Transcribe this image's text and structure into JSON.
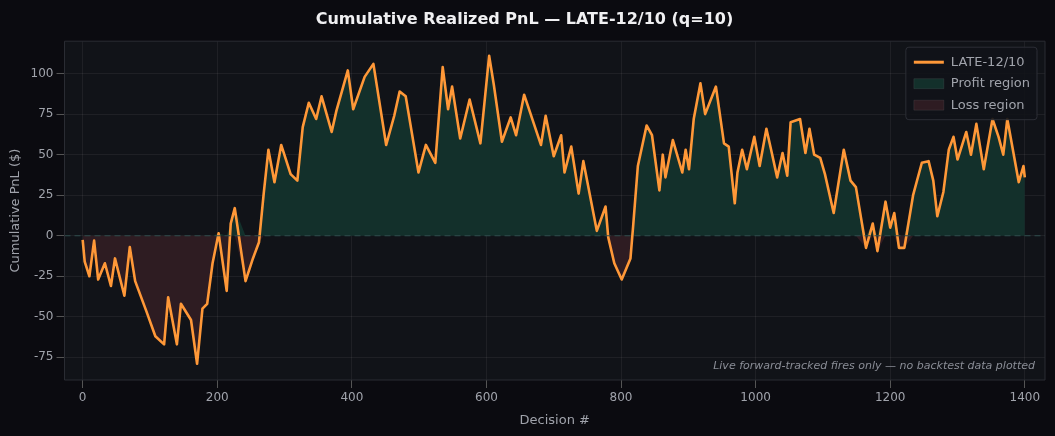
{
  "chart_data": {
    "type": "line",
    "title": "Cumulative Realized PnL — LATE-12/10 (q=10)",
    "xlabel": "Decision #",
    "ylabel": "Cumulative PnL ($)",
    "x": [
      0,
      3,
      10,
      17,
      23,
      33,
      42,
      48,
      62,
      70,
      78,
      95,
      108,
      121,
      127,
      140,
      146,
      161,
      170,
      178,
      185,
      193,
      202,
      214,
      220,
      226,
      242,
      253,
      262,
      269,
      276,
      285,
      295,
      309,
      319,
      327,
      336,
      347,
      355,
      370,
      377,
      394,
      402,
      419,
      432,
      451,
      463,
      471,
      480,
      499,
      510,
      524,
      535,
      543,
      549,
      561,
      575,
      591,
      604,
      611,
      623,
      636,
      644,
      656,
      681,
      688,
      700,
      711,
      716,
      726,
      737,
      744,
      764,
      777,
      781,
      790,
      801,
      814,
      818,
      825,
      838,
      846,
      857,
      862,
      866,
      877,
      891,
      896,
      901,
      908,
      918,
      925,
      941,
      953,
      960,
      969,
      973,
      980,
      987,
      998,
      1006,
      1016,
      1023,
      1032,
      1040,
      1047,
      1052,
      1066,
      1074,
      1080,
      1087,
      1096,
      1103,
      1116,
      1131,
      1141,
      1149,
      1164,
      1174,
      1181,
      1193,
      1200,
      1206,
      1213,
      1221,
      1234,
      1247,
      1257,
      1264,
      1270,
      1279,
      1287,
      1294,
      1300,
      1313,
      1320,
      1328,
      1339,
      1352,
      1361,
      1368,
      1374,
      1391,
      1398,
      1400
    ],
    "series": [
      {
        "name": "Profit region",
        "type": "area",
        "color": "#13302b",
        "values": [
          0,
          0,
          0,
          0,
          0,
          0,
          0,
          0,
          0,
          0,
          0,
          0,
          0,
          0,
          0,
          0,
          0,
          0,
          0,
          0,
          0,
          0,
          1.5,
          0,
          7.5,
          17,
          0,
          0,
          0,
          26,
          53,
          33,
          56,
          38,
          34,
          67,
          82,
          72,
          86,
          64,
          77,
          102,
          78,
          98,
          106,
          56,
          74,
          89,
          86,
          39,
          56,
          45,
          104,
          78,
          92,
          60,
          84,
          57,
          111,
          93,
          58,
          73,
          62,
          87,
          56,
          74,
          49,
          62,
          39,
          55,
          26,
          46,
          3,
          18,
          0,
          0,
          0,
          0,
          6,
          43,
          68,
          62,
          28,
          50,
          36,
          59,
          39,
          53,
          41,
          72,
          94,
          75,
          92,
          57,
          55,
          20,
          39,
          53,
          41,
          61,
          43,
          66,
          53,
          36,
          51,
          37,
          70,
          72,
          51,
          66,
          50,
          48,
          38,
          14,
          53,
          34,
          30,
          0,
          7.5,
          0,
          21,
          5,
          14,
          0,
          0,
          25,
          45,
          46,
          34,
          12,
          27,
          53,
          61,
          47,
          64,
          50,
          69,
          41,
          72,
          61,
          50,
          72,
          33,
          43,
          36
        ]
      },
      {
        "name": "Loss region",
        "type": "area",
        "color": "#2e1c22",
        "values": [
          -2.5,
          -16,
          -25,
          -3,
          -27,
          -17,
          -31,
          -14,
          -37,
          -7,
          -28,
          -47,
          -62,
          -67,
          -38,
          -67,
          -42,
          -52,
          -79,
          -45,
          -42,
          -17,
          0,
          -34,
          0,
          0,
          -28,
          -14,
          -4,
          0,
          0,
          0,
          0,
          0,
          0,
          0,
          0,
          0,
          0,
          0,
          0,
          0,
          0,
          0,
          0,
          0,
          0,
          0,
          0,
          0,
          0,
          0,
          0,
          0,
          0,
          0,
          0,
          0,
          0,
          0,
          0,
          0,
          0,
          0,
          0,
          0,
          0,
          0,
          0,
          0,
          0,
          0,
          0,
          0,
          -1,
          -17,
          -27,
          -14,
          0,
          0,
          0,
          0,
          0,
          0,
          0,
          0,
          0,
          0,
          0,
          0,
          0,
          0,
          0,
          0,
          0,
          0,
          0,
          0,
          0,
          0,
          0,
          0,
          0,
          0,
          0,
          0,
          0,
          0,
          0,
          0,
          0,
          0,
          0,
          0,
          0,
          0,
          0,
          -7.5,
          0,
          -9.5,
          0,
          0,
          0,
          -7.5,
          -7.5,
          0,
          0,
          0,
          0,
          0,
          0,
          0,
          0,
          0,
          0,
          0,
          0,
          0,
          0,
          0,
          0,
          0,
          0,
          0,
          0
        ]
      },
      {
        "name": "LATE-12/10",
        "color": "#ff9838",
        "values": [
          -2.5,
          -16,
          -25,
          -3,
          -27,
          -17,
          -31,
          -14,
          -37,
          -7,
          -28,
          -47,
          -62,
          -67,
          -38,
          -67,
          -42,
          -52,
          -79,
          -45,
          -42,
          -17,
          1.5,
          -34,
          7.5,
          17,
          -28,
          -14,
          -4,
          26,
          53,
          33,
          56,
          38,
          34,
          67,
          82,
          72,
          86,
          64,
          77,
          102,
          78,
          98,
          106,
          56,
          74,
          89,
          86,
          39,
          56,
          45,
          104,
          78,
          92,
          60,
          84,
          57,
          111,
          93,
          58,
          73,
          62,
          87,
          56,
          74,
          49,
          62,
          39,
          55,
          26,
          46,
          3,
          18,
          -1,
          -17,
          -27,
          -14,
          6,
          43,
          68,
          62,
          28,
          50,
          36,
          59,
          39,
          53,
          41,
          72,
          94,
          75,
          92,
          57,
          55,
          20,
          39,
          53,
          41,
          61,
          43,
          66,
          53,
          36,
          51,
          37,
          70,
          72,
          51,
          66,
          50,
          48,
          38,
          14,
          53,
          34,
          30,
          -7.5,
          7.5,
          -9.5,
          21,
          5,
          14,
          -7.5,
          -7.5,
          25,
          45,
          46,
          34,
          12,
          27,
          53,
          61,
          47,
          64,
          50,
          69,
          41,
          72,
          61,
          50,
          72,
          33,
          43,
          36
        ]
      }
    ],
    "xlim": [
      -27,
      1430
    ],
    "ylim": [
      -89,
      120
    ],
    "xticks": [
      0,
      200,
      400,
      600,
      800,
      1000,
      1200,
      1400
    ],
    "yticks": [
      -75,
      -50,
      -25,
      0,
      25,
      50,
      75,
      100
    ],
    "ref_lines": [
      {
        "axis": "y",
        "value": 0,
        "color": "#2f4c4c",
        "line_style": "dashed"
      }
    ],
    "annotations": [
      "Live forward-tracked fires only — no backtest data plotted"
    ],
    "grid": true,
    "legend": "top right",
    "marker": "none",
    "line_style": "solid"
  }
}
